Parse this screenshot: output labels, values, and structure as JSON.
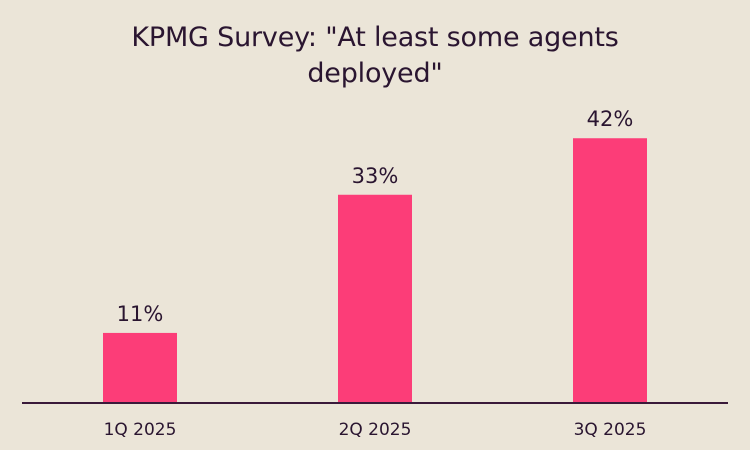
{
  "chart_data": {
    "type": "bar",
    "title_lines": [
      "KPMG Survey: \"At least some agents",
      "deployed\""
    ],
    "categories": [
      "1Q 2025",
      "2Q 2025",
      "3Q 2025"
    ],
    "values": [
      11,
      33,
      42
    ],
    "value_labels": [
      "11%",
      "33%",
      "42%"
    ],
    "unit": "%",
    "ylim": [
      0,
      50
    ],
    "xlabel": "",
    "ylabel": "",
    "grid": false,
    "legend": "none",
    "colors": {
      "bar": "#fc3d78",
      "background": "#ebe5d8",
      "text": "#2a1530",
      "axis": "#3a1a3a"
    }
  }
}
